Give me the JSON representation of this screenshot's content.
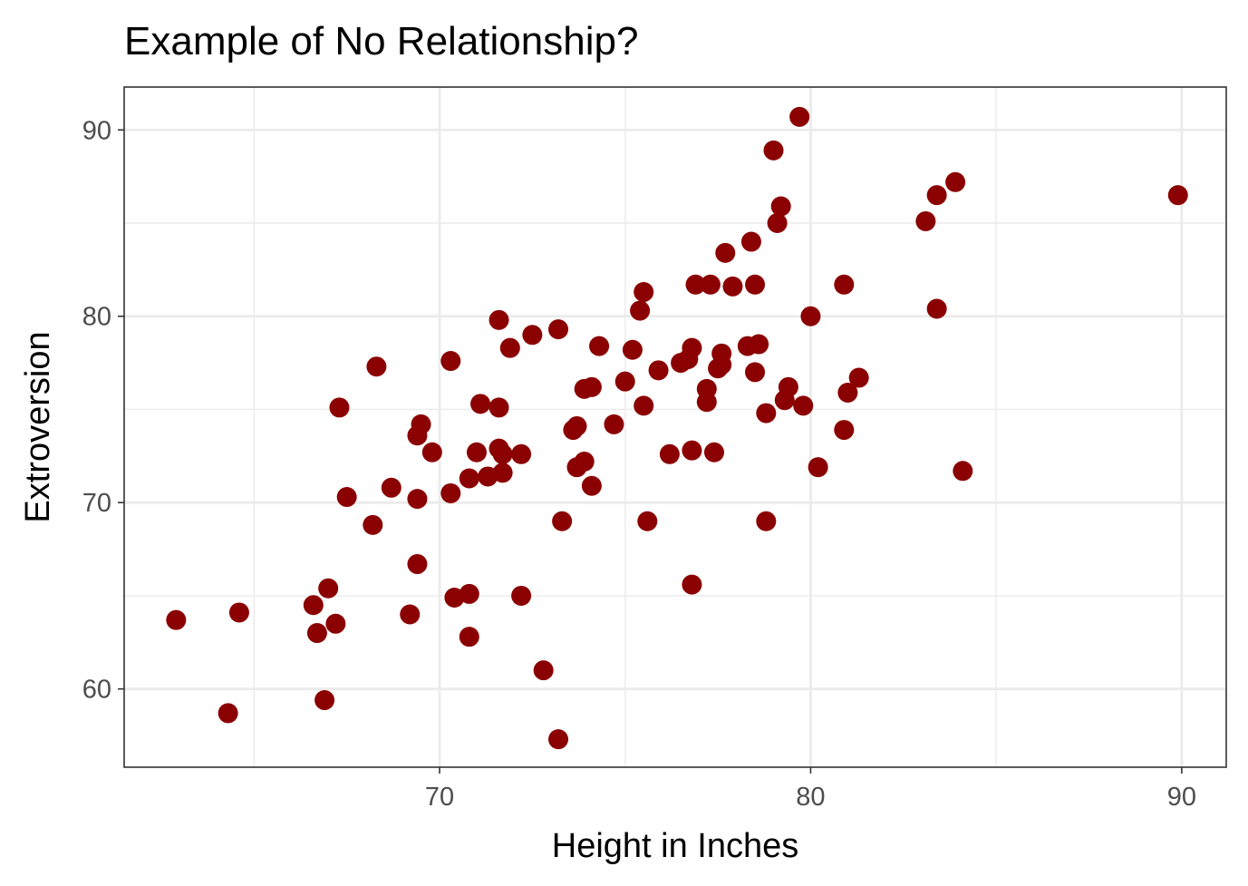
{
  "chart_data": {
    "type": "scatter",
    "title": "Example of No Relationship?",
    "xlabel": "Height in Inches",
    "ylabel": "Extroversion",
    "xlim": [
      61.5,
      91.2
    ],
    "ylim": [
      55.8,
      92.3
    ],
    "x_ticks": [
      70,
      80,
      90
    ],
    "y_ticks": [
      60,
      70,
      80,
      90
    ],
    "x_minor_ticks": [
      65,
      75,
      85
    ],
    "y_minor_ticks": [
      65,
      75,
      85
    ],
    "grid": true,
    "legend": "none",
    "point_color": "#8B0000",
    "panel_border_color": "#333333",
    "grid_color": "#EBEBEB",
    "points": [
      [
        62.9,
        63.7
      ],
      [
        64.3,
        58.7
      ],
      [
        64.6,
        64.1
      ],
      [
        66.6,
        64.5
      ],
      [
        66.7,
        63.0
      ],
      [
        66.9,
        59.4
      ],
      [
        67.0,
        65.4
      ],
      [
        67.2,
        63.5
      ],
      [
        67.3,
        75.1
      ],
      [
        67.5,
        70.3
      ],
      [
        68.2,
        68.8
      ],
      [
        68.3,
        77.3
      ],
      [
        68.7,
        70.8
      ],
      [
        69.2,
        64.0
      ],
      [
        69.4,
        66.7
      ],
      [
        69.4,
        70.2
      ],
      [
        69.4,
        73.6
      ],
      [
        69.5,
        74.2
      ],
      [
        69.8,
        72.7
      ],
      [
        70.3,
        70.5
      ],
      [
        70.3,
        77.6
      ],
      [
        70.4,
        64.9
      ],
      [
        70.8,
        65.1
      ],
      [
        70.8,
        62.8
      ],
      [
        70.8,
        71.3
      ],
      [
        71.0,
        72.7
      ],
      [
        71.1,
        75.3
      ],
      [
        71.3,
        71.4
      ],
      [
        71.6,
        79.8
      ],
      [
        71.6,
        72.9
      ],
      [
        71.6,
        75.1
      ],
      [
        71.7,
        72.6
      ],
      [
        71.7,
        71.6
      ],
      [
        71.9,
        78.3
      ],
      [
        72.2,
        72.6
      ],
      [
        72.2,
        65.0
      ],
      [
        72.5,
        79.0
      ],
      [
        72.8,
        61.0
      ],
      [
        73.2,
        57.3
      ],
      [
        73.2,
        79.3
      ],
      [
        73.3,
        69.0
      ],
      [
        73.6,
        73.9
      ],
      [
        73.7,
        74.1
      ],
      [
        73.7,
        71.9
      ],
      [
        73.9,
        72.2
      ],
      [
        73.9,
        76.1
      ],
      [
        74.1,
        76.2
      ],
      [
        74.1,
        70.9
      ],
      [
        74.3,
        78.4
      ],
      [
        74.7,
        74.2
      ],
      [
        75.0,
        76.5
      ],
      [
        75.2,
        78.2
      ],
      [
        75.4,
        80.3
      ],
      [
        75.5,
        81.3
      ],
      [
        75.5,
        75.2
      ],
      [
        75.6,
        69.0
      ],
      [
        75.9,
        77.1
      ],
      [
        76.2,
        72.6
      ],
      [
        76.5,
        77.5
      ],
      [
        76.7,
        77.7
      ],
      [
        76.8,
        72.8
      ],
      [
        76.8,
        78.3
      ],
      [
        76.8,
        65.6
      ],
      [
        76.9,
        81.7
      ],
      [
        77.2,
        76.1
      ],
      [
        77.2,
        75.4
      ],
      [
        77.3,
        81.7
      ],
      [
        77.4,
        72.7
      ],
      [
        77.5,
        77.2
      ],
      [
        77.6,
        77.4
      ],
      [
        77.6,
        78.0
      ],
      [
        77.7,
        83.4
      ],
      [
        77.9,
        81.6
      ],
      [
        78.3,
        78.4
      ],
      [
        78.4,
        84.0
      ],
      [
        78.5,
        77.0
      ],
      [
        78.5,
        81.7
      ],
      [
        78.6,
        78.5
      ],
      [
        78.8,
        69.0
      ],
      [
        78.8,
        74.8
      ],
      [
        79.0,
        88.9
      ],
      [
        79.1,
        85.0
      ],
      [
        79.2,
        85.9
      ],
      [
        79.3,
        75.5
      ],
      [
        79.4,
        76.2
      ],
      [
        79.7,
        90.7
      ],
      [
        79.8,
        75.2
      ],
      [
        80.0,
        80.0
      ],
      [
        80.2,
        71.9
      ],
      [
        80.9,
        73.9
      ],
      [
        80.9,
        81.7
      ],
      [
        81.0,
        75.9
      ],
      [
        81.3,
        76.7
      ],
      [
        83.1,
        85.1
      ],
      [
        83.4,
        86.5
      ],
      [
        83.4,
        80.4
      ],
      [
        83.9,
        87.2
      ],
      [
        84.1,
        71.7
      ],
      [
        89.9,
        86.5
      ]
    ]
  }
}
